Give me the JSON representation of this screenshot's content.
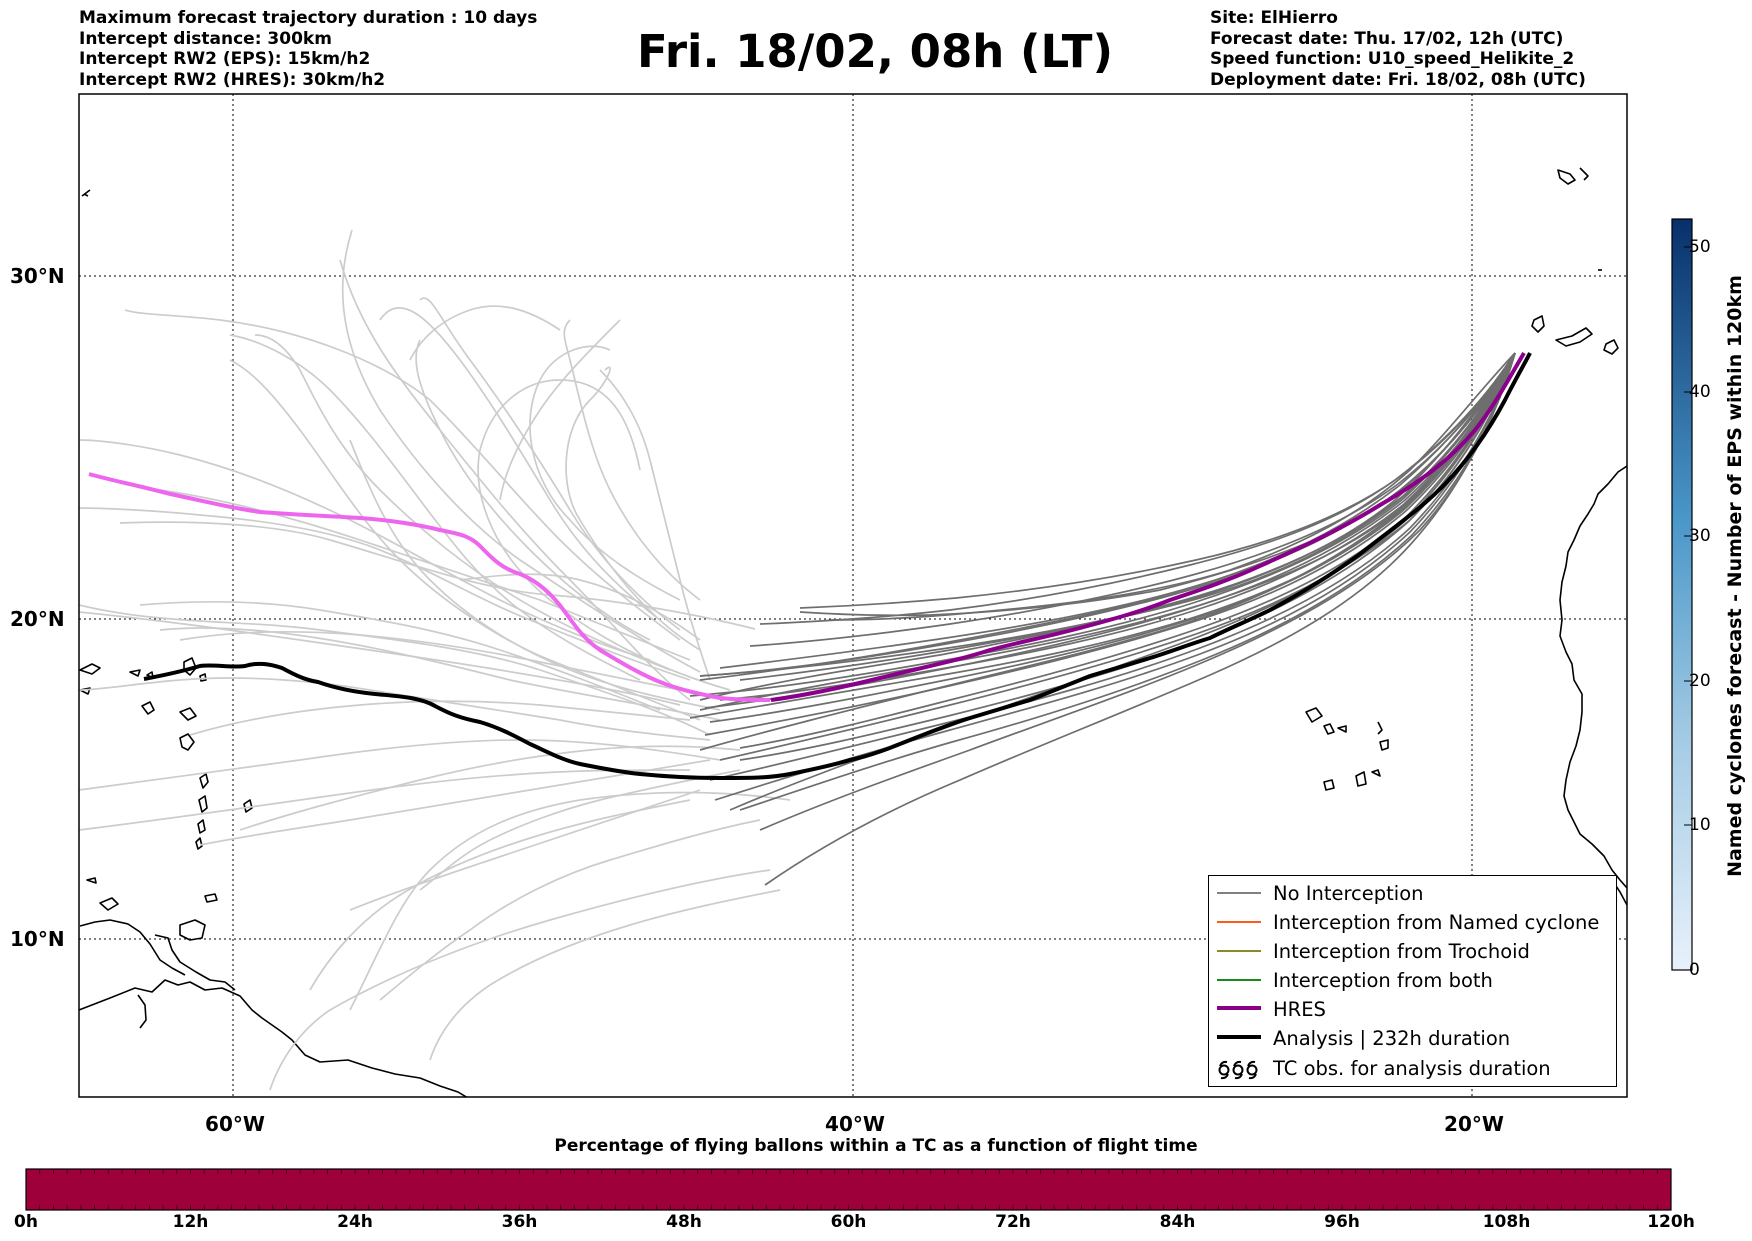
{
  "header": {
    "left_lines": [
      "Maximum forecast trajectory duration : 10 days",
      "Intercept distance: 300km",
      "Intercept RW2 (EPS):  15km/h2",
      "Intercept RW2 (HRES): 30km/h2"
    ],
    "right_lines": [
      "Site: ElHierro",
      "Forecast date: Thu. 17/02, 12h (UTC)",
      "Speed function: U10_speed_Helikite_2",
      "Deployment date: Fri. 18/02, 08h (UTC)"
    ],
    "title": "Fri. 18/02, 08h (LT)"
  },
  "map": {
    "lat_labels": [
      "30°N",
      "20°N",
      "10°N"
    ],
    "lon_labels": [
      "60°W",
      "40°W",
      "20°W"
    ],
    "colors": {
      "no_interception": "#6e6e6e",
      "eps_faint": "#cccccc",
      "hres": "#8b008b",
      "hres_light": "#ee66ee",
      "analysis": "#000000"
    }
  },
  "legend": {
    "items": [
      {
        "label": "No Interception",
        "color": "#808080",
        "width": 1.5,
        "kind": "line"
      },
      {
        "label": "Interception from Named cyclone",
        "color": "#ff5a1e",
        "width": 1.5,
        "kind": "line"
      },
      {
        "label": "Interception from Trochoid",
        "color": "#8a8a2a",
        "width": 1.5,
        "kind": "line"
      },
      {
        "label": "Interception from both",
        "color": "#1a8a1a",
        "width": 1.5,
        "kind": "line"
      },
      {
        "label": "HRES",
        "color": "#8b008b",
        "width": 5,
        "kind": "line"
      },
      {
        "label": "Analysis | 232h duration",
        "color": "#000000",
        "width": 5,
        "kind": "line"
      },
      {
        "label": "TC obs. for analysis duration",
        "color": "#000000",
        "width": 1.5,
        "kind": "tc-symbol"
      }
    ]
  },
  "colorbar": {
    "label": "Named cyclones forecast - Number of EPS within 120km",
    "ticks": [
      "0",
      "10",
      "20",
      "30",
      "40",
      "50"
    ],
    "range": [
      0,
      52
    ],
    "color_low": "#e6f0fa",
    "color_high": "#08306b"
  },
  "time_bar": {
    "title": "Percentage of flying ballons within a TC as a function of flight time",
    "ticks": [
      "0h",
      "12h",
      "24h",
      "36h",
      "48h",
      "60h",
      "72h",
      "84h",
      "96h",
      "108h",
      "120h"
    ],
    "fill_color": "#9e003a"
  }
}
